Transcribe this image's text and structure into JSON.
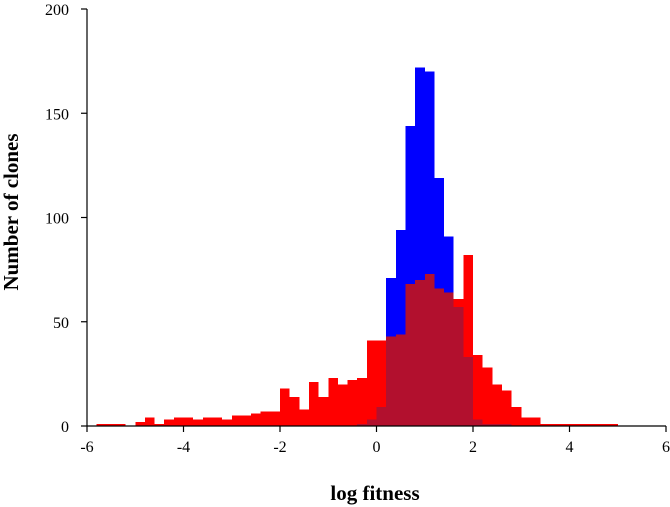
{
  "chart_data": {
    "type": "bar",
    "title": "",
    "xlabel": "log fitness",
    "ylabel": "Number of clones",
    "xlim": [
      -6,
      6
    ],
    "ylim": [
      0,
      200
    ],
    "xticks": [
      -6,
      -4,
      -2,
      0,
      2,
      4,
      6
    ],
    "yticks": [
      0,
      50,
      100,
      150,
      200
    ],
    "bin_width": 0.2,
    "grid": false,
    "legend": "none",
    "series": [
      {
        "color": "#ff0000",
        "x": [
          -5.8,
          -5.6,
          -5.4,
          -5.2,
          -5.0,
          -4.8,
          -4.6,
          -4.4,
          -4.2,
          -4.0,
          -3.8,
          -3.6,
          -3.4,
          -3.2,
          -3.0,
          -2.8,
          -2.6,
          -2.4,
          -2.2,
          -2.0,
          -1.8,
          -1.6,
          -1.4,
          -1.2,
          -1.0,
          -0.8,
          -0.6,
          -0.4,
          -0.2,
          0.0,
          0.2,
          0.4,
          0.6,
          0.8,
          1.0,
          1.2,
          1.4,
          1.6,
          1.8,
          2.0,
          2.2,
          2.4,
          2.6,
          2.8,
          3.0,
          3.2,
          3.4,
          3.6,
          3.8,
          4.0,
          4.2,
          4.4,
          4.6,
          4.8
        ],
        "values": [
          1,
          1,
          1,
          0,
          2,
          4,
          1,
          3,
          4,
          4,
          3,
          4,
          4,
          3,
          5,
          5,
          6,
          7,
          7,
          18,
          14,
          8,
          21,
          14,
          23,
          20,
          22,
          23,
          41,
          41,
          43,
          44,
          68,
          70,
          73,
          66,
          64,
          61,
          82,
          34,
          28,
          20,
          17,
          9,
          4,
          4,
          1,
          1,
          1,
          1,
          1,
          1,
          1,
          1
        ]
      },
      {
        "color": "#0000ff",
        "x": [
          -5.8,
          -5.6,
          -5.4,
          -5.2,
          -5.0,
          -4.8,
          -4.6,
          -4.4,
          -4.2,
          -4.0,
          -3.8,
          -3.6,
          -3.4,
          -3.2,
          -3.0,
          -2.8,
          -2.6,
          -2.4,
          -2.2,
          -2.0,
          -1.8,
          -1.6,
          -1.4,
          -1.2,
          -1.0,
          -0.8,
          -0.6,
          -0.4,
          -0.2,
          0.0,
          0.2,
          0.4,
          0.6,
          0.8,
          1.0,
          1.2,
          1.4,
          1.6,
          1.8,
          2.0,
          2.2,
          2.4,
          2.6,
          2.8,
          3.0,
          3.2,
          3.4,
          3.6,
          3.8,
          4.0,
          4.2,
          4.4,
          4.6,
          4.8
        ],
        "values": [
          0,
          0,
          0,
          0,
          0,
          0,
          0,
          0,
          0,
          0,
          0,
          0,
          0,
          0,
          0,
          0,
          0,
          0,
          0,
          0,
          0,
          0,
          0,
          0,
          0,
          0,
          0,
          1,
          3,
          9,
          71,
          94,
          144,
          172,
          170,
          119,
          91,
          57,
          33,
          3,
          1,
          1,
          1,
          0,
          0,
          0,
          0,
          0,
          0,
          0,
          0,
          0,
          0,
          0
        ]
      }
    ],
    "overlap_color": "#b2102e"
  }
}
